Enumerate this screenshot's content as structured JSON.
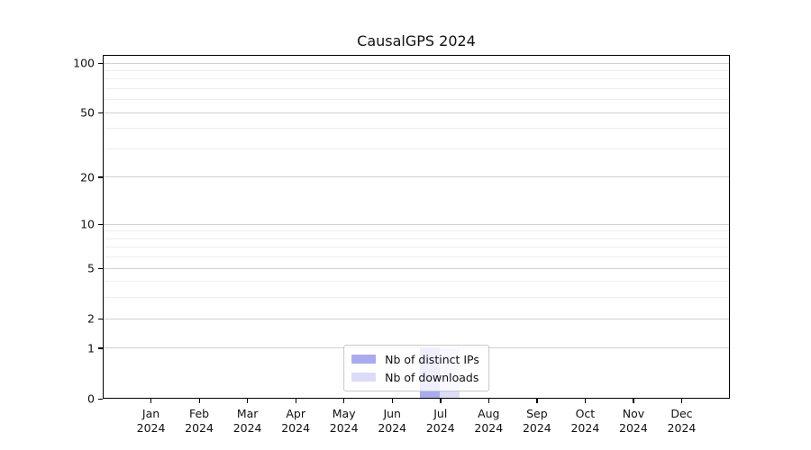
{
  "title": "CausalGPS 2024",
  "colors": {
    "distinct_ips": "#aaaaee",
    "downloads": "#dcdcf8",
    "grid_major": "#d2d2d2",
    "grid_minor": "#ededed",
    "axis": "#000000",
    "text": "#111111",
    "legend_border": "#c8c8c8"
  },
  "chart_data": {
    "type": "bar",
    "title": "CausalGPS 2024",
    "categories": [
      "Jan 2024",
      "Feb 2024",
      "Mar 2024",
      "Apr 2024",
      "May 2024",
      "Jun 2024",
      "Jul 2024",
      "Aug 2024",
      "Sep 2024",
      "Oct 2024",
      "Nov 2024",
      "Dec 2024"
    ],
    "series": [
      {
        "name": "Nb of distinct IPs",
        "color": "#aaaaee",
        "values": [
          0,
          0,
          0,
          0,
          0,
          0,
          1,
          0,
          0,
          0,
          0,
          0
        ]
      },
      {
        "name": "Nb of downloads",
        "color": "#dcdcf8",
        "values": [
          0,
          0,
          0,
          0,
          0,
          0,
          1,
          0,
          0,
          0,
          0,
          0
        ]
      }
    ],
    "xlabel": "",
    "ylabel": "",
    "y_scale": "log1p",
    "y_ticks": [
      0,
      1,
      2,
      5,
      10,
      20,
      50,
      100
    ],
    "y_minor_ticks": [
      3,
      4,
      6,
      7,
      8,
      9,
      30,
      40,
      60,
      70,
      80,
      90
    ],
    "ylim": [
      0,
      112
    ],
    "grid": "horizontal",
    "legend_position": "lower center"
  }
}
